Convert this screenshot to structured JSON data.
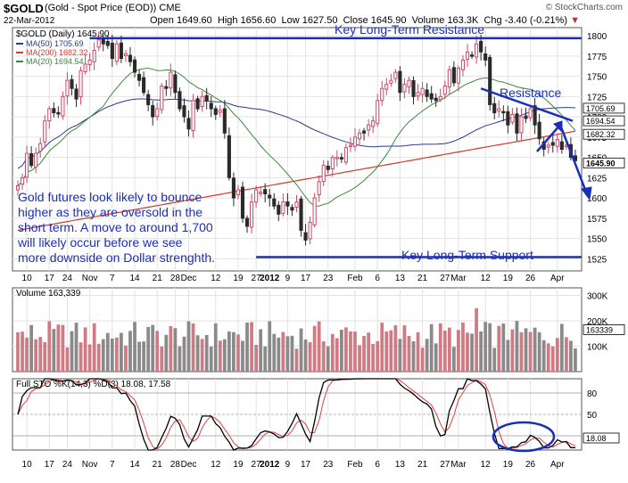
{
  "header": {
    "symbol": "$GOLD",
    "name": "(Gold - Spot Price (EOD))",
    "exchange": "CME",
    "date": "22-Mar-2012",
    "open_label": "Open",
    "open": "1649.60",
    "high_label": "High",
    "high": "1656.60",
    "low_label": "Low",
    "low": "1627.50",
    "close_label": "Close",
    "close": "1645.90",
    "volume_label": "Volume",
    "volume": "163.3K",
    "chg_label": "Chg",
    "chg": "-3.40 (-0.21%)",
    "watermark": "© StockCharts.com"
  },
  "colors": {
    "up": "#c84b6a",
    "down": "#2a2a2a",
    "ma50": "#2a3a8c",
    "ma200": "#d63a2a",
    "ma20": "#3a8a3a",
    "annotation": "#1a2fb8",
    "vol_up": "#d07b84",
    "vol_down": "#8a8a8a",
    "sto_k": "#000000",
    "sto_d": "#e04040"
  },
  "chart_data": [
    {
      "type": "candlestick",
      "legend_title": "$GOLD (Daily) 1645.90",
      "legend": [
        {
          "label": "MA(50) 1705.69",
          "color": "#2a3a8c"
        },
        {
          "label": "MA(200) 1682.32",
          "color": "#d63a2a"
        },
        {
          "label": "MA(20) 1694.54",
          "color": "#3a8a3a"
        }
      ],
      "ylim": [
        1510,
        1810
      ],
      "yticks": [
        1525,
        1550,
        1575,
        1600,
        1625,
        1650,
        1675,
        1700,
        1725,
        1750,
        1775,
        1800
      ],
      "price_tags": [
        {
          "value": 1705.69,
          "text": "1705.69"
        },
        {
          "value": 1694.54,
          "text": "1694.54"
        },
        {
          "value": 1682.32,
          "text": "1682.32"
        },
        {
          "value": 1645.9,
          "text": "1645.90",
          "bold": true
        }
      ],
      "closes": [
        1615,
        1625,
        1655,
        1640,
        1655,
        1667,
        1695,
        1710,
        1705,
        1705,
        1725,
        1745,
        1735,
        1722,
        1757,
        1765,
        1770,
        1782,
        1795,
        1790,
        1788,
        1772,
        1790,
        1772,
        1778,
        1768,
        1755,
        1745,
        1730,
        1715,
        1700,
        1710,
        1738,
        1735,
        1755,
        1730,
        1710,
        1700,
        1685,
        1720,
        1710,
        1725,
        1720,
        1710,
        1703,
        1708,
        1680,
        1625,
        1600,
        1610,
        1575,
        1565,
        1595,
        1610,
        1607,
        1605,
        1600,
        1590,
        1580,
        1595,
        1590,
        1585,
        1595,
        1560,
        1548,
        1570,
        1600,
        1620,
        1640,
        1635,
        1650,
        1650,
        1648,
        1662,
        1665,
        1675,
        1680,
        1680,
        1690,
        1695,
        1720,
        1735,
        1740,
        1745,
        1755,
        1730,
        1740,
        1745,
        1725,
        1730,
        1735,
        1725,
        1722,
        1720,
        1725,
        1738,
        1758,
        1742,
        1760,
        1770,
        1780,
        1775,
        1790,
        1780,
        1770,
        1715,
        1705,
        1710,
        1705,
        1690,
        1703,
        1680,
        1700,
        1698,
        1710,
        1690,
        1673,
        1660,
        1665,
        1665,
        1672,
        1660,
        1665,
        1650,
        1645.9
      ],
      "x_ticks": [
        {
          "i": 2,
          "text": "10"
        },
        {
          "i": 7,
          "text": "17"
        },
        {
          "i": 11,
          "text": "24"
        },
        {
          "i": 16,
          "text": "Nov"
        },
        {
          "i": 21,
          "text": "7"
        },
        {
          "i": 26,
          "text": "14"
        },
        {
          "i": 31,
          "text": "21"
        },
        {
          "i": 35,
          "text": "28"
        },
        {
          "i": 38,
          "text": "Dec"
        },
        {
          "i": 44,
          "text": "12"
        },
        {
          "i": 49,
          "text": "19"
        },
        {
          "i": 53,
          "text": "27"
        },
        {
          "i": 56,
          "text": "2012"
        },
        {
          "i": 60,
          "text": "9"
        },
        {
          "i": 64,
          "text": "17"
        },
        {
          "i": 69,
          "text": "23"
        },
        {
          "i": 75,
          "text": "Feb"
        },
        {
          "i": 80,
          "text": "6"
        },
        {
          "i": 85,
          "text": "13"
        },
        {
          "i": 90,
          "text": "21"
        },
        {
          "i": 95,
          "text": "27"
        },
        {
          "i": 98,
          "text": "Mar"
        },
        {
          "i": 104,
          "text": "12"
        },
        {
          "i": 109,
          "text": "19"
        },
        {
          "i": 114,
          "text": "26"
        },
        {
          "i": 120,
          "text": "Apr"
        }
      ],
      "annotations": {
        "resistance_top": "Key Long-Term Resistance",
        "resistance": "Resistance",
        "support": "Key Long-Term Support",
        "note": "Gold futures look likely to bounce higher as they are oversold in the short term. A move to around 1,700 will likely occur before we see more downside on Dollar strenghth.",
        "resistance_level": 1797,
        "support_level": 1527
      }
    },
    {
      "type": "bar",
      "legend_title": "Volume 163,339",
      "ylim": [
        0,
        330000
      ],
      "yticks": [
        {
          "v": 100000,
          "text": "100K"
        },
        {
          "v": 200000,
          "text": "200K"
        },
        {
          "v": 300000,
          "text": "300K"
        }
      ],
      "last_tag": "163339"
    },
    {
      "type": "line",
      "legend_title": "Full STO %K(14,3) %D(3) 18.08, 17.58",
      "ylim": [
        0,
        100
      ],
      "levels": [
        {
          "v": 80,
          "text": "80"
        },
        {
          "v": 50,
          "text": "50"
        },
        {
          "v": 20,
          "text": ""
        }
      ],
      "last_tag": "18.08",
      "x_ticks_bottom": true
    }
  ]
}
